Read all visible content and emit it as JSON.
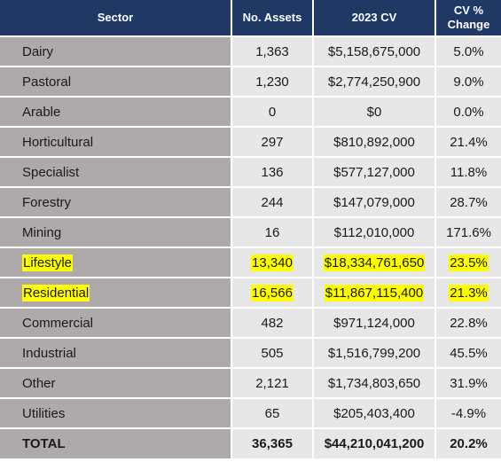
{
  "header": {
    "sector": "Sector",
    "assets": "No. Assets",
    "cv": "2023 CV",
    "change_line1": "CV %",
    "change_line2": "Change"
  },
  "rows": [
    {
      "sector": "Dairy",
      "assets": "1,363",
      "cv": "$5,158,675,000",
      "change": "5.0%",
      "highlighted": false
    },
    {
      "sector": "Pastoral",
      "assets": "1,230",
      "cv": "$2,774,250,900",
      "change": "9.0%",
      "highlighted": false
    },
    {
      "sector": "Arable",
      "assets": "0",
      "cv": "$0",
      "change": "0.0%",
      "highlighted": false
    },
    {
      "sector": "Horticultural",
      "assets": "297",
      "cv": "$810,892,000",
      "change": "21.4%",
      "highlighted": false
    },
    {
      "sector": "Specialist",
      "assets": "136",
      "cv": "$577,127,000",
      "change": "11.8%",
      "highlighted": false
    },
    {
      "sector": "Forestry",
      "assets": "244",
      "cv": "$147,079,000",
      "change": "28.7%",
      "highlighted": false
    },
    {
      "sector": "Mining",
      "assets": "16",
      "cv": "$112,010,000",
      "change": "171.6%",
      "highlighted": false
    },
    {
      "sector": "Lifestyle",
      "assets": "13,340",
      "cv": "$18,334,761,650",
      "change": "23.5%",
      "highlighted": true
    },
    {
      "sector": "Residential",
      "assets": "16,566",
      "cv": "$11,867,115,400",
      "change": "21.3%",
      "highlighted": true
    },
    {
      "sector": "Commercial",
      "assets": "482",
      "cv": "$971,124,000",
      "change": "22.8%",
      "highlighted": false
    },
    {
      "sector": "Industrial",
      "assets": "505",
      "cv": "$1,516,799,200",
      "change": "45.5%",
      "highlighted": false
    },
    {
      "sector": "Other",
      "assets": "2,121",
      "cv": "$1,734,803,650",
      "change": "31.9%",
      "highlighted": false
    },
    {
      "sector": "Utilities",
      "assets": "65",
      "cv": "$205,403,400",
      "change": "-4.9%",
      "highlighted": false
    }
  ],
  "total": {
    "sector": "TOTAL",
    "assets": "36,365",
    "cv": "$44,210,041,200",
    "change": "20.2%"
  },
  "colors": {
    "header_bg": "#1f3864",
    "sector_bg": "#aeaaaa",
    "cell_bg": "#e7e7e7",
    "highlight": "#ffff00"
  }
}
